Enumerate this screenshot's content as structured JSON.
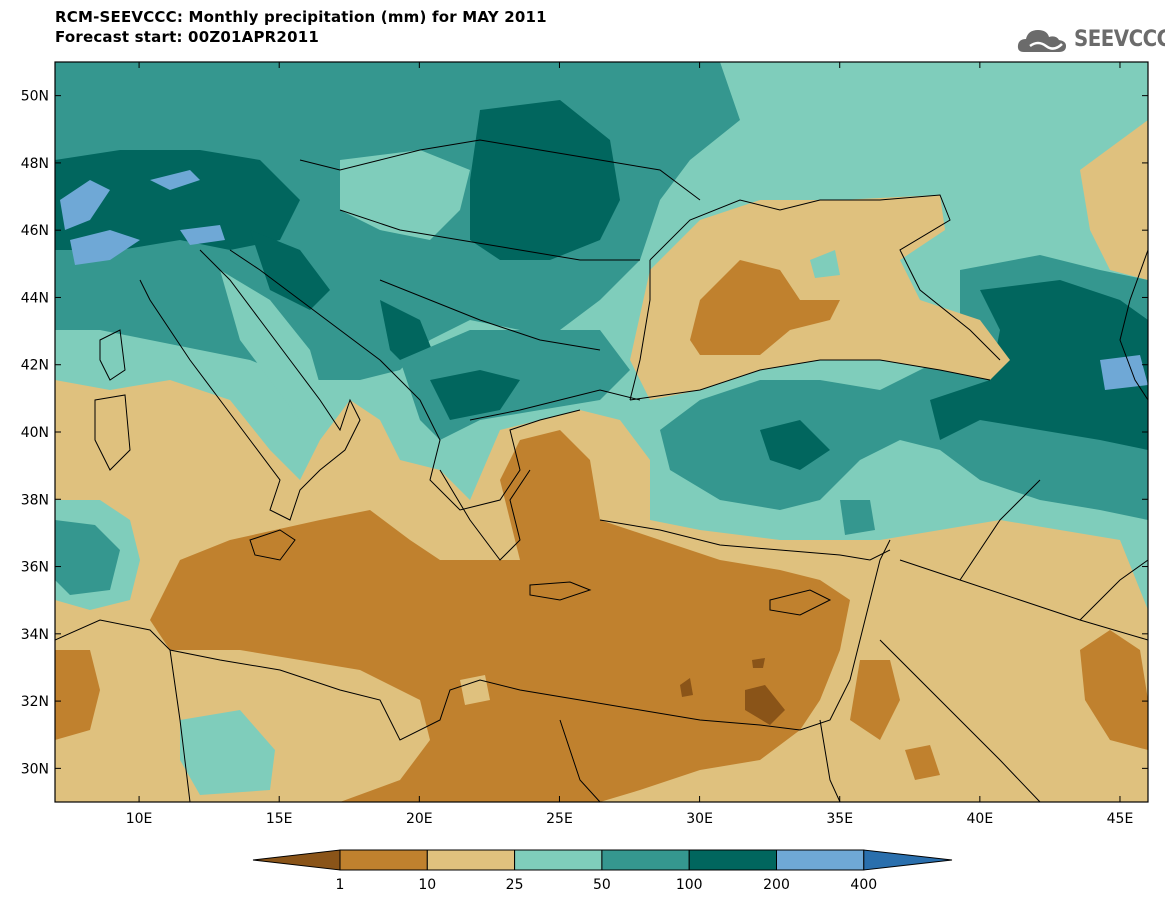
{
  "header": {
    "title": "RCM-SEEVCCC: Monthly precipitation (mm) for MAY 2011",
    "subtitle": "Forecast start: 00Z01APR2011",
    "logo_text": "SEEVCCC"
  },
  "map": {
    "lon_range": [
      7,
      46
    ],
    "lat_range": [
      29,
      51
    ],
    "lat_ticks": [
      "30N",
      "32N",
      "34N",
      "36N",
      "38N",
      "40N",
      "42N",
      "44N",
      "46N",
      "48N",
      "50N"
    ],
    "lon_ticks": [
      "10E",
      "15E",
      "20E",
      "25E",
      "30E",
      "35E",
      "40E",
      "45E"
    ]
  },
  "colorbar": {
    "labels": [
      "1",
      "10",
      "25",
      "50",
      "100",
      "200",
      "400"
    ],
    "colors": [
      "#8a5418",
      "#c0812e",
      "#dfc17e",
      "#7fcdbb",
      "#35978f",
      "#01665e",
      "#6fa8d6",
      "#2a6fad"
    ]
  }
}
